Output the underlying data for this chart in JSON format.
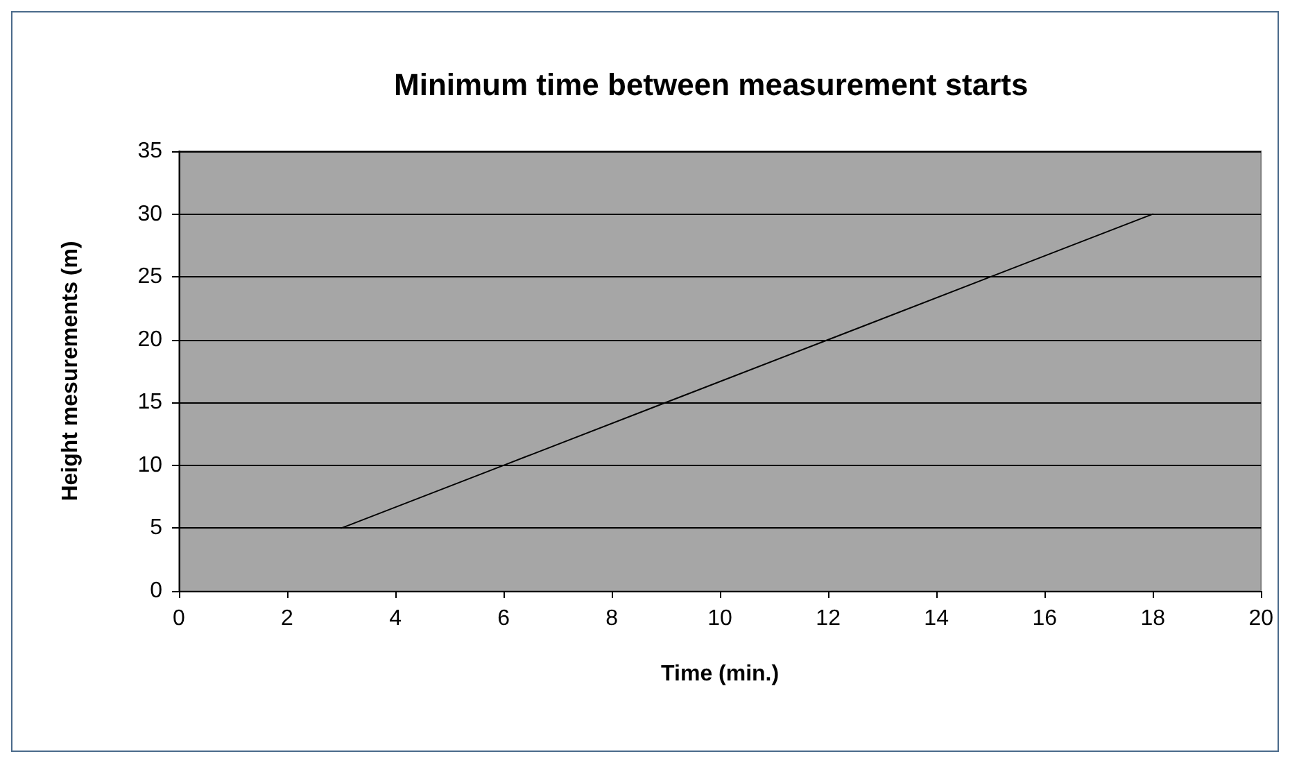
{
  "chart_data": {
    "type": "line",
    "title": "Minimum time between measurement starts",
    "xlabel": "Time (min.)",
    "ylabel": "Height mesurements (m)",
    "series": [
      {
        "color": "#000000",
        "x": [
          3,
          6,
          9,
          12,
          15,
          18
        ],
        "values": [
          5,
          10,
          15,
          20,
          25,
          30
        ]
      }
    ],
    "xlim": [
      0,
      20
    ],
    "xticks": [
      0,
      2,
      4,
      6,
      8,
      10,
      12,
      14,
      16,
      18,
      20
    ],
    "ylim": [
      0,
      35
    ],
    "yticks": [
      0,
      5,
      10,
      15,
      20,
      25,
      30,
      35
    ],
    "grid": "y",
    "marker": "none",
    "line_style": "solid"
  }
}
